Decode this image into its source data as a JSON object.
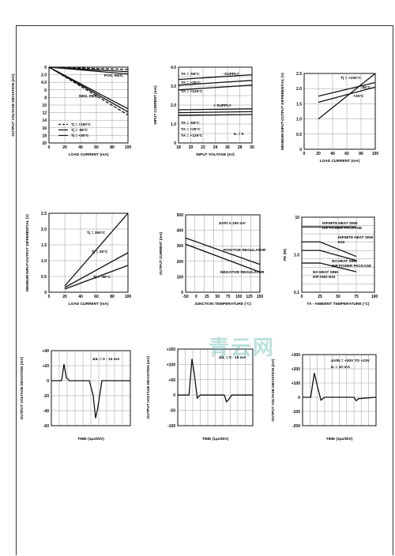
{
  "page": {
    "watermark": "青云网"
  },
  "chart_data": [
    {
      "id": "c1",
      "type": "line",
      "xlabel": "LOAD CURRENT (mA)",
      "ylabel": "OUTPUT VOLTAGE DEVIATION (mV)",
      "xlim": [
        0,
        100
      ],
      "ylim": [
        0,
        20
      ],
      "invert_y": true,
      "xticks": [
        "0",
        "20",
        "40",
        "60",
        "80",
        "100"
      ],
      "yticks": [
        "0",
        "2.0",
        "4.0",
        "6",
        "8",
        "10",
        "12",
        "14",
        "16",
        "18",
        "20"
      ],
      "legend": [
        "Tj = +150°C",
        "Tj = -55°C",
        "Tj = +25°C"
      ],
      "legend_position": "bottom-left",
      "annotations": [
        "POS. REG.",
        "NEG. REG."
      ],
      "series": [
        {
          "style": "dashed",
          "x": [
            0,
            100
          ],
          "y": [
            0,
            0.6
          ]
        },
        {
          "style": "solid",
          "x": [
            0,
            100
          ],
          "y": [
            0,
            1.8
          ]
        },
        {
          "style": "solid",
          "x": [
            0,
            100
          ],
          "y": [
            0,
            1.2
          ]
        },
        {
          "style": "dashed",
          "x": [
            0,
            100
          ],
          "y": [
            0,
            12.6
          ]
        },
        {
          "style": "solid",
          "x": [
            0,
            100
          ],
          "y": [
            0,
            11.0
          ]
        },
        {
          "style": "solid",
          "x": [
            0,
            100
          ],
          "y": [
            0,
            11.8
          ]
        }
      ]
    },
    {
      "id": "c2",
      "type": "line",
      "xlabel": "INPUT VOLTAGE (±V)",
      "ylabel": "INPUT CURRENT (mA)",
      "xlim": [
        18,
        30
      ],
      "ylim": [
        0,
        4.0
      ],
      "xticks": [
        "18",
        "20",
        "22",
        "24",
        "26",
        "28",
        "30"
      ],
      "yticks": [
        "0",
        "1.0",
        "2.0",
        "3.0",
        "4.0"
      ],
      "annotations": [
        "TA = -55°C",
        "TA = +25°C",
        "TA = +125°C",
        "- SUPPLY",
        "+ SUPPLY",
        "TA = -55°C",
        "TA = +25°C",
        "TA = +125°C",
        "IL = 0"
      ],
      "series": [
        {
          "name": "TA = -55°C, - SUPPLY",
          "x": [
            18,
            30
          ],
          "y": [
            3.35,
            3.6
          ]
        },
        {
          "name": "TA = +25°C, - SUPPLY",
          "x": [
            18,
            30
          ],
          "y": [
            3.05,
            3.3
          ]
        },
        {
          "name": "TA = +125°C, - SUPPLY",
          "x": [
            18,
            30
          ],
          "y": [
            2.8,
            3.05
          ]
        },
        {
          "name": "TA = -55°C, + SUPPLY",
          "x": [
            18,
            30
          ],
          "y": [
            1.75,
            1.8
          ]
        },
        {
          "name": "TA = +25°C, + SUPPLY",
          "x": [
            18,
            30
          ],
          "y": [
            1.6,
            1.65
          ]
        },
        {
          "name": "TA = +125°C, + SUPPLY",
          "x": [
            18,
            30
          ],
          "y": [
            1.45,
            1.5
          ]
        }
      ]
    },
    {
      "id": "c3",
      "type": "line",
      "xlabel": "LOAD CURRENT (mA)",
      "ylabel": "MINIMUM INPUT-OUTPUT DIFFERENTIAL (V)",
      "xlim": [
        0,
        100
      ],
      "ylim": [
        0,
        2.5
      ],
      "xticks": [
        "0",
        "20",
        "40",
        "60",
        "80",
        "100"
      ],
      "yticks": [
        "0",
        "0.5",
        "1.0",
        "1.5",
        "2.0",
        "2.5"
      ],
      "annotations": [
        "Tj = +150°C",
        "-55°C",
        "+25°C"
      ],
      "series": [
        {
          "name": "Tj = +150°C",
          "x": [
            20,
            100
          ],
          "y": [
            1.0,
            2.5
          ]
        },
        {
          "name": "-55°C",
          "x": [
            20,
            100
          ],
          "y": [
            1.75,
            2.2
          ]
        },
        {
          "name": "+25°C",
          "x": [
            20,
            100
          ],
          "y": [
            1.55,
            2.05
          ]
        }
      ]
    },
    {
      "id": "c4",
      "type": "line",
      "xlabel": "LOAD CURRENT (mA)",
      "ylabel": "MINIMUM INPUT-OUTPUT DIFFERENTIAL (V)",
      "xlim": [
        0,
        100
      ],
      "ylim": [
        0,
        2.5
      ],
      "xticks": [
        "0",
        "20",
        "40",
        "60",
        "80",
        "100"
      ],
      "yticks": [
        "0",
        "0.5",
        "1.0",
        "1.5",
        "2.0",
        "2.5"
      ],
      "annotations": [
        "Tj = 150°C",
        "Tj = 25°C",
        "Tj = -55°C"
      ],
      "series": [
        {
          "name": "Tj = 150°C",
          "x": [
            20,
            100
          ],
          "y": [
            0.2,
            2.5
          ]
        },
        {
          "name": "Tj = 25°C",
          "x": [
            20,
            100
          ],
          "y": [
            0.15,
            1.25
          ]
        },
        {
          "name": "Tj = -55°C",
          "x": [
            20,
            100
          ],
          "y": [
            0.1,
            0.85
          ]
        }
      ]
    },
    {
      "id": "c5",
      "type": "line",
      "xlabel": "JUNCTION TEMPERATURE (°C)",
      "ylabel": "OUTPUT CURRENT (mA)",
      "xlim": [
        -50,
        150
      ],
      "ylim": [
        0,
        500
      ],
      "xticks": [
        "-50",
        "0",
        "25",
        "50",
        "75",
        "100",
        "125",
        "150"
      ],
      "yticks": [
        "0",
        "100",
        "200",
        "300",
        "400",
        "500"
      ],
      "annotations": [
        "ΔVIO ≤ 150 mV",
        "POSITIVE REGULATOR",
        "NEGATIVE REGULATOR"
      ],
      "series": [
        {
          "name": "POSITIVE REGULATOR",
          "x": [
            -50,
            150
          ],
          "y": [
            350,
            180
          ]
        },
        {
          "name": "NEGATIVE REGULATOR",
          "x": [
            -50,
            150
          ],
          "y": [
            310,
            130
          ]
        }
      ]
    },
    {
      "id": "c6",
      "type": "line",
      "scale_y": "log",
      "xlabel": "TA - AMBIENT TEMPERATURE (°C)",
      "ylabel": "PD (W)",
      "xlim": [
        0,
        100
      ],
      "ylim": [
        0.1,
        10
      ],
      "xticks": [
        "0",
        "25",
        "50",
        "75",
        "100"
      ],
      "yticks": [
        "0.1",
        "1.0",
        "10"
      ],
      "annotations": [
        "INFINITE HEAT SINK DIP POWER PACKAGE",
        "INFINITE HEAT SINK H10",
        "NO HEAT SINK DIP POWER PACKAGE",
        "NO HEAT SINK DIP AND H10"
      ],
      "series": [
        {
          "name": "INFINITE HEAT SINK DIP POWER PACKAGE",
          "x": [
            0,
            75
          ],
          "y": [
            5.5,
            5.5
          ]
        },
        {
          "name": "INFINITE HEAT SINK H10",
          "x": [
            0,
            25,
            75
          ],
          "y": [
            2.2,
            2.2,
            0.9
          ]
        },
        {
          "name": "NO HEAT SINK DIP POWER PACKAGE",
          "x": [
            0,
            25,
            75
          ],
          "y": [
            1.3,
            1.3,
            0.7
          ]
        },
        {
          "name": "NO HEAT SINK DIP AND H10",
          "x": [
            0,
            25,
            75
          ],
          "y": [
            0.6,
            0.6,
            0.35
          ]
        }
      ]
    },
    {
      "id": "c7",
      "type": "line",
      "xlabel": "TIME (1μs/DIV)",
      "ylabel": "OUTPUT VOLTAGE DEVIATION (mV)",
      "xlim": [
        0,
        10
      ],
      "ylim": [
        -60,
        40
      ],
      "xticks": [],
      "yticks": [
        "-60",
        "-40",
        "-20",
        "0",
        "+20",
        "+40"
      ],
      "annotations": [
        "ΔIL = 0 - 10 mA"
      ],
      "series": [
        {
          "x": [
            0,
            1.3,
            1.6,
            1.9,
            2.3,
            4.8,
            5.3,
            5.6,
            5.9,
            6.4,
            10
          ],
          "y": [
            0,
            0,
            22,
            4,
            0,
            0,
            -20,
            -50,
            -35,
            0,
            0
          ]
        }
      ]
    },
    {
      "id": "c8",
      "type": "line",
      "xlabel": "TIME (1μs/DIV)",
      "ylabel": "OUTPUT VOLTAGE DEVIATION (mV)",
      "xlim": [
        0,
        10
      ],
      "ylim": [
        -100,
        150
      ],
      "xticks": [],
      "yticks": [
        "-100",
        "-50",
        "0",
        "+50",
        "+100",
        "+150"
      ],
      "annotations": [
        "ΔIL = 0 - 10 mA"
      ],
      "series": [
        {
          "x": [
            0,
            1.5,
            1.9,
            2.2,
            2.6,
            3.0,
            6.2,
            6.5,
            6.8,
            7.2,
            10
          ],
          "y": [
            0,
            0,
            118,
            70,
            -10,
            0,
            0,
            -22,
            -14,
            0,
            0
          ]
        }
      ]
    },
    {
      "id": "c9",
      "type": "line",
      "xlabel": "TIME (2μs/DIV)",
      "ylabel": "OUTPUT VOLTAGE DEVIATION (mV)",
      "xlim": [
        0,
        10
      ],
      "ylim": [
        -200,
        300
      ],
      "xticks": [],
      "yticks": [
        "-200",
        "-100",
        "0",
        "+100",
        "+200",
        "+300"
      ],
      "annotations": [
        "ΔVIN = +20V TO +23V",
        "IL = 10 mA"
      ],
      "series": [
        {
          "x": [
            0,
            1.1,
            1.6,
            2.1,
            2.5,
            3.0,
            7.0,
            7.3,
            7.6,
            10
          ],
          "y": [
            0,
            0,
            170,
            60,
            -20,
            0,
            0,
            -25,
            -10,
            0
          ]
        }
      ]
    }
  ]
}
